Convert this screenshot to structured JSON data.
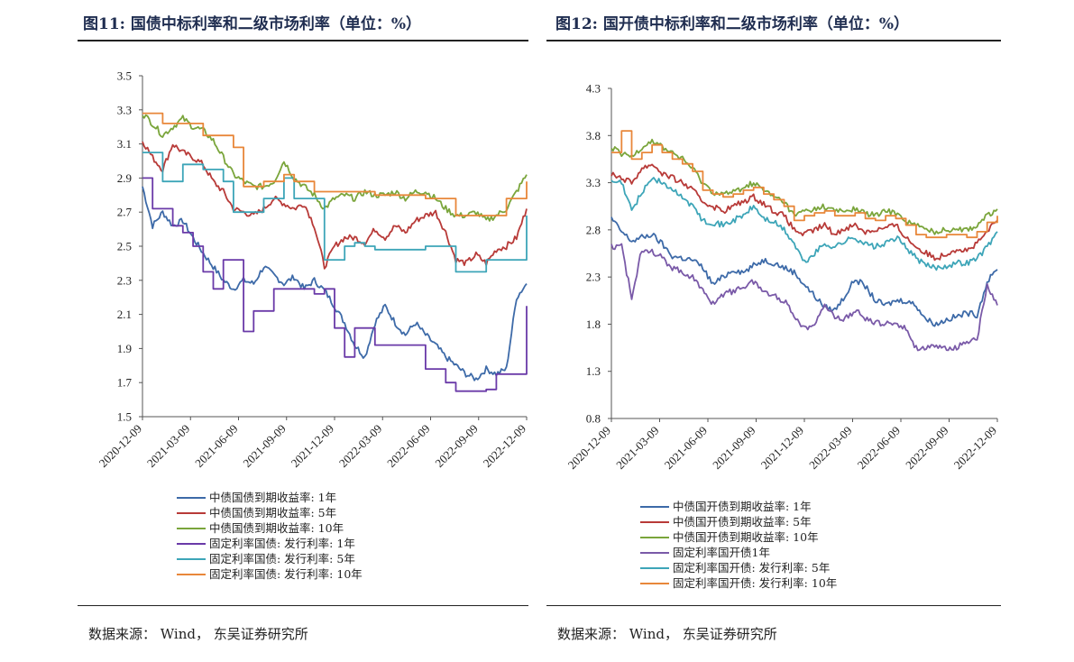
{
  "figures": [
    {
      "id": "fig11",
      "title": "图11:  国债中标利率和二级市场利率（单位：%）",
      "source": "数据来源：  Wind，  东吴证券研究所"
    },
    {
      "id": "fig12",
      "title": "图12:  国开债中标利率和二级市场利率（单位：%）",
      "source": "数据来源：  Wind，  东吴证券研究所"
    }
  ],
  "chart_data": [
    {
      "type": "line",
      "title": "图11:  国债中标利率和二级市场利率（单位：%）",
      "ylim": [
        1.5,
        3.5
      ],
      "yticks": [
        "3.5",
        "3.3",
        "3.1",
        "2.9",
        "2.7",
        "2.5",
        "2.3",
        "2.1",
        "1.9",
        "1.7",
        "1.5"
      ],
      "xticks": [
        "2020-12-09",
        "2021-03-09",
        "2021-06-09",
        "2021-09-09",
        "2021-12-09",
        "2022-03-09",
        "2022-06-09",
        "2022-09-09",
        "2022-12-09"
      ],
      "series": [
        {
          "name": "中债国债到期收益率: 1年",
          "color": "#3d6aa8",
          "style": "noisy",
          "values": [
            2.85,
            2.62,
            2.7,
            2.62,
            2.65,
            2.55,
            2.46,
            2.38,
            2.3,
            2.25,
            2.3,
            2.28,
            2.38,
            2.33,
            2.28,
            2.32,
            2.25,
            2.3,
            2.24,
            2.15,
            2.05,
            1.92,
            1.85,
            2.05,
            2.15,
            2.05,
            1.98,
            2.05,
            1.98,
            1.92,
            1.85,
            1.8,
            1.75,
            1.72,
            1.78,
            1.75,
            1.78,
            2.2,
            2.28
          ]
        },
        {
          "name": "中债国债到期收益率: 5年",
          "color": "#b83a38",
          "style": "noisy",
          "values": [
            3.12,
            3.02,
            2.95,
            3.1,
            3.05,
            3.02,
            2.98,
            2.88,
            2.82,
            2.72,
            2.7,
            2.68,
            2.72,
            2.78,
            2.75,
            2.72,
            2.75,
            2.62,
            2.38,
            2.5,
            2.55,
            2.55,
            2.52,
            2.6,
            2.55,
            2.62,
            2.58,
            2.65,
            2.68,
            2.7,
            2.58,
            2.42,
            2.4,
            2.45,
            2.4,
            2.48,
            2.5,
            2.55,
            2.72
          ]
        },
        {
          "name": "中债国债到期收益率: 10年",
          "color": "#7aa53b",
          "style": "noisy",
          "values": [
            3.28,
            3.22,
            3.15,
            3.2,
            3.25,
            3.2,
            3.18,
            3.12,
            3.02,
            2.92,
            2.88,
            2.85,
            2.85,
            2.88,
            3.0,
            2.9,
            2.85,
            2.8,
            2.72,
            2.78,
            2.8,
            2.78,
            2.82,
            2.8,
            2.8,
            2.82,
            2.78,
            2.82,
            2.82,
            2.78,
            2.72,
            2.68,
            2.68,
            2.7,
            2.65,
            2.68,
            2.72,
            2.82,
            2.92
          ]
        },
        {
          "name": "固定利率国债: 发行利率: 1年",
          "color": "#6a3aa8",
          "style": "step",
          "values": [
            2.9,
            2.72,
            2.72,
            2.62,
            2.58,
            2.5,
            2.35,
            2.25,
            2.42,
            2.42,
            2.0,
            2.12,
            2.12,
            2.25,
            2.25,
            2.25,
            2.25,
            2.22,
            2.25,
            2.02,
            1.85,
            2.02,
            2.02,
            1.92,
            1.92,
            1.92,
            1.92,
            1.92,
            1.78,
            1.78,
            1.7,
            1.65,
            1.65,
            1.65,
            1.66,
            1.75,
            1.75,
            1.75,
            2.15
          ]
        },
        {
          "name": "固定利率国债: 发行利率: 5年",
          "color": "#3da5b8",
          "style": "step",
          "values": [
            3.05,
            3.05,
            2.88,
            2.88,
            2.98,
            2.98,
            2.95,
            2.95,
            2.88,
            2.7,
            2.7,
            2.7,
            2.78,
            2.78,
            2.9,
            2.78,
            2.78,
            2.78,
            2.42,
            2.42,
            2.5,
            2.52,
            2.5,
            2.48,
            2.48,
            2.48,
            2.48,
            2.48,
            2.5,
            2.5,
            2.5,
            2.35,
            2.35,
            2.35,
            2.42,
            2.42,
            2.42,
            2.42,
            2.68
          ]
        },
        {
          "name": "固定利率国债: 发行利率: 10年",
          "color": "#e8873a",
          "style": "step",
          "values": [
            3.28,
            3.28,
            3.22,
            3.22,
            3.22,
            3.22,
            3.15,
            3.15,
            3.15,
            3.08,
            2.85,
            2.85,
            2.88,
            2.88,
            2.92,
            2.88,
            2.88,
            2.82,
            2.82,
            2.82,
            2.82,
            2.82,
            2.82,
            2.8,
            2.8,
            2.8,
            2.8,
            2.8,
            2.78,
            2.78,
            2.78,
            2.68,
            2.68,
            2.68,
            2.68,
            2.68,
            2.78,
            2.78,
            2.88
          ]
        }
      ]
    },
    {
      "type": "line",
      "title": "图12:  国开债中标利率和二级市场利率（单位：%）",
      "ylim": [
        0.8,
        4.3
      ],
      "yticks": [
        "4.3",
        "3.8",
        "3.3",
        "2.8",
        "2.3",
        "1.8",
        "1.3",
        "0.8"
      ],
      "xticks": [
        "2020-12-09",
        "2021-03-09",
        "2021-06-09",
        "2021-09-09",
        "2021-12-09",
        "2022-03-09",
        "2022-06-09",
        "2022-09-09",
        "2022-12-09"
      ],
      "series": [
        {
          "name": "中债国开债到期收益率: 1年",
          "color": "#3d6aa8",
          "style": "noisy",
          "values": [
            2.92,
            2.78,
            2.68,
            2.72,
            2.75,
            2.65,
            2.52,
            2.5,
            2.48,
            2.4,
            2.22,
            2.3,
            2.38,
            2.35,
            2.42,
            2.48,
            2.45,
            2.4,
            2.35,
            2.22,
            2.1,
            1.98,
            1.95,
            2.1,
            2.28,
            2.2,
            2.05,
            2.0,
            2.05,
            2.05,
            2.0,
            1.85,
            1.8,
            1.85,
            1.88,
            1.92,
            1.9,
            2.25,
            2.38
          ]
        },
        {
          "name": "中债国开债到期收益率: 5年",
          "color": "#b83a38",
          "style": "noisy",
          "values": [
            3.4,
            3.35,
            3.3,
            3.45,
            3.5,
            3.4,
            3.35,
            3.3,
            3.22,
            3.1,
            3.05,
            3.0,
            3.05,
            3.1,
            3.15,
            3.08,
            3.0,
            2.95,
            2.8,
            2.75,
            2.8,
            2.85,
            2.75,
            2.82,
            2.85,
            2.78,
            2.8,
            2.82,
            2.85,
            2.72,
            2.62,
            2.55,
            2.5,
            2.55,
            2.6,
            2.58,
            2.65,
            2.78,
            2.9
          ]
        },
        {
          "name": "中债国开债到期收益率: 10年",
          "color": "#7aa53b",
          "style": "noisy",
          "values": [
            3.68,
            3.6,
            3.58,
            3.68,
            3.75,
            3.68,
            3.62,
            3.55,
            3.45,
            3.3,
            3.2,
            3.18,
            3.2,
            3.25,
            3.3,
            3.22,
            3.15,
            3.1,
            2.95,
            3.0,
            3.02,
            3.05,
            3.0,
            3.0,
            3.02,
            2.98,
            2.95,
            3.0,
            2.98,
            2.9,
            2.85,
            2.8,
            2.78,
            2.8,
            2.82,
            2.8,
            2.85,
            2.95,
            3.02
          ]
        },
        {
          "name": "固定利率国开债1年",
          "color": "#7a5aa8",
          "style": "noisy",
          "values": [
            2.62,
            2.62,
            2.08,
            2.6,
            2.58,
            2.5,
            2.4,
            2.35,
            2.3,
            2.15,
            2.02,
            2.12,
            2.15,
            2.2,
            2.25,
            2.15,
            2.1,
            2.05,
            1.9,
            1.75,
            1.82,
            2.0,
            1.88,
            1.85,
            1.95,
            1.85,
            1.82,
            1.8,
            1.82,
            1.75,
            1.55,
            1.55,
            1.55,
            1.55,
            1.55,
            1.62,
            1.65,
            2.2,
            2.0
          ]
        },
        {
          "name": "固定利率国开债: 发行利率: 5年",
          "color": "#3da5b8",
          "style": "noisy",
          "values": [
            3.3,
            3.3,
            3.0,
            3.2,
            3.35,
            3.3,
            3.22,
            3.15,
            3.05,
            2.9,
            2.88,
            2.85,
            2.9,
            2.95,
            3.05,
            2.92,
            2.88,
            2.8,
            2.65,
            2.45,
            2.55,
            2.65,
            2.62,
            2.68,
            2.72,
            2.65,
            2.62,
            2.65,
            2.72,
            2.62,
            2.5,
            2.42,
            2.4,
            2.42,
            2.45,
            2.45,
            2.5,
            2.62,
            2.78
          ]
        },
        {
          "name": "固定利率国开债: 发行利率: 10年",
          "color": "#e8873a",
          "style": "step",
          "values": [
            3.62,
            3.85,
            3.55,
            3.62,
            3.7,
            3.62,
            3.55,
            3.5,
            3.42,
            3.22,
            3.18,
            3.15,
            3.18,
            3.22,
            3.25,
            3.18,
            3.12,
            3.05,
            2.9,
            2.95,
            2.98,
            3.0,
            2.95,
            2.95,
            2.98,
            2.92,
            2.9,
            2.95,
            2.92,
            2.85,
            2.75,
            2.72,
            2.72,
            2.75,
            2.75,
            2.72,
            2.78,
            2.88,
            2.95
          ]
        }
      ]
    }
  ]
}
